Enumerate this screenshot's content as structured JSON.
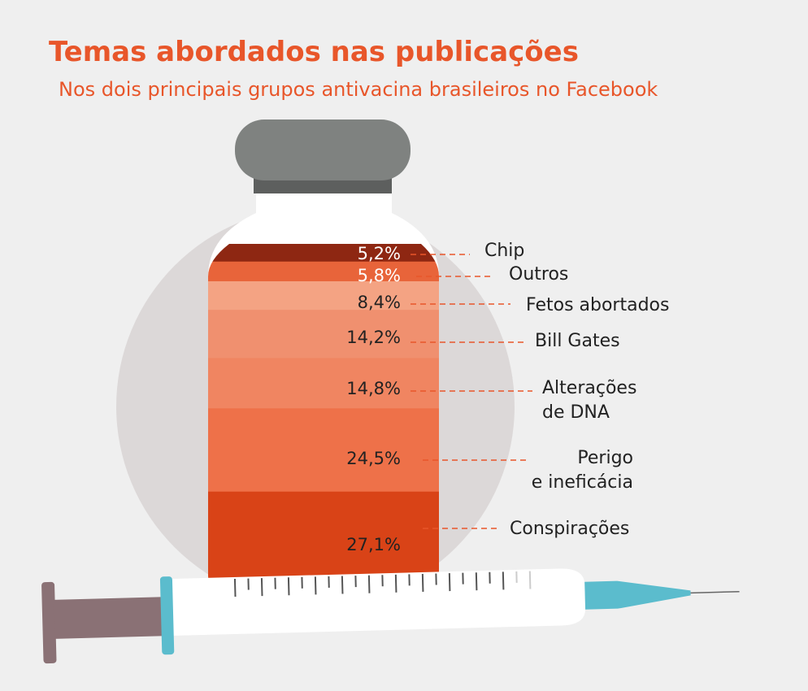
{
  "chart_data": {
    "type": "stacked-bar",
    "title": "Temas abordados nas publicações",
    "subtitle": "Nos dois principais grupos antivacina brasileiros no Facebook",
    "categories": [
      "Chip",
      "Outros",
      "Fetos abortados",
      "Bill Gates",
      "Alterações\nde DNA",
      "Perigo\ne ineficácia",
      "Conspirações"
    ],
    "values": [
      5.2,
      5.8,
      8.4,
      14.2,
      14.8,
      24.5,
      27.1
    ],
    "value_labels": [
      "5,2%",
      "5,8%",
      "8,4%",
      "14,2%",
      "14,8%",
      "24,5%",
      "27,1%"
    ],
    "colors": [
      "#8e2712",
      "#e8643a",
      "#f4a383",
      "#f0906f",
      "#f08561",
      "#ee7149",
      "#d94317"
    ]
  }
}
